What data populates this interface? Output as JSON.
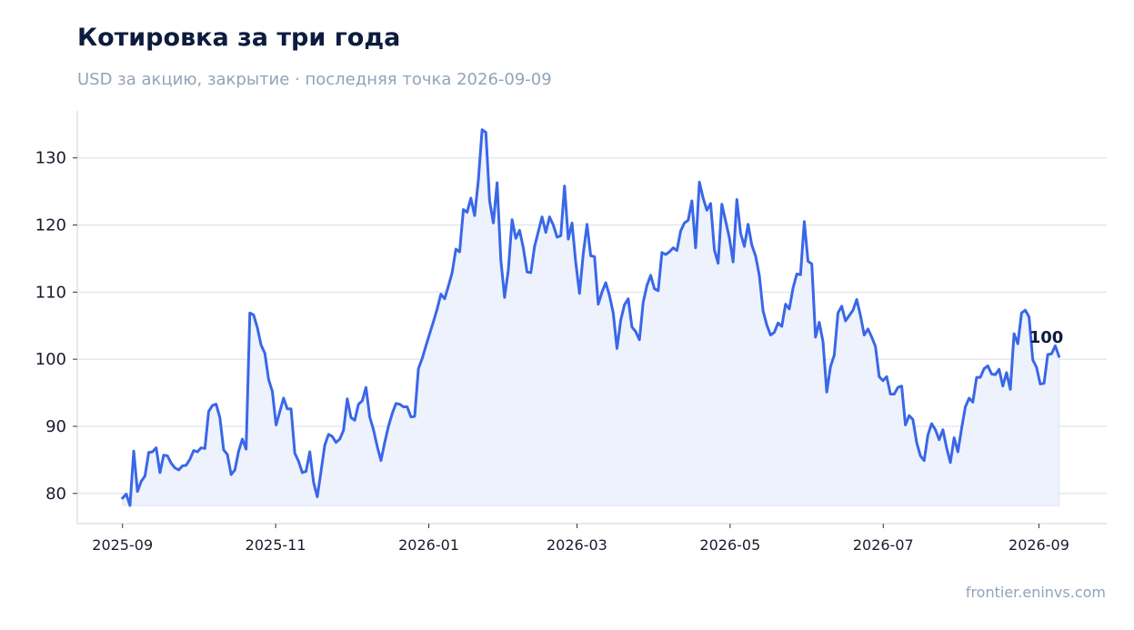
{
  "title": "Котировка за три года",
  "subtitle": "USD за акцию, закрытие · последняя точка 2026-09-09",
  "credit": "frontier.eninvs.com",
  "colors": {
    "line": "#3a67e8",
    "fill": "#edf2fd",
    "grid": "#dde2f0",
    "axis": "#dde2ea"
  },
  "chart_data": {
    "type": "area",
    "x_start": "2025-09-01",
    "x_end": "2026-09-09",
    "xlim": [
      "2025-08-14",
      "2026-09-28"
    ],
    "ylim": [
      75.5,
      137
    ],
    "yticks": [
      80,
      90,
      100,
      110,
      120,
      130
    ],
    "xticks": [
      "2025-09",
      "2025-11",
      "2026-01",
      "2026-03",
      "2026-05",
      "2026-07",
      "2026-09"
    ],
    "grid": true,
    "last_label": "100",
    "series": [
      {
        "values": [
          79.3,
          79.9,
          78.2,
          86.3,
          80.3,
          81.8,
          82.6,
          86.1,
          86.2,
          86.8,
          83.1,
          85.7,
          85.6,
          84.5,
          83.8,
          83.5,
          84.1,
          84.2,
          85.1,
          86.4,
          86.2,
          86.8,
          86.7,
          92.2,
          93.1,
          93.3,
          91.3,
          86.5,
          85.8,
          82.8,
          83.5,
          86.3,
          88.1,
          86.6,
          106.9,
          106.6,
          104.7,
          102.1,
          100.9,
          97.0,
          95.2,
          90.2,
          92.2,
          94.2,
          92.6,
          92.6,
          86.0,
          84.8,
          83.1,
          83.3,
          86.2,
          81.7,
          79.5,
          83.3,
          87.2,
          88.8,
          88.5,
          87.6,
          88.1,
          89.4,
          94.1,
          91.3,
          90.9,
          93.3,
          93.8,
          95.8,
          91.4,
          89.5,
          87.0,
          84.9,
          87.6,
          90.0,
          91.9,
          93.4,
          93.3,
          92.9,
          92.9,
          91.4,
          91.5,
          98.6,
          100.1,
          102.0,
          103.8,
          105.6,
          107.5,
          109.7,
          109.0,
          110.9,
          112.9,
          116.4,
          116.0,
          122.3,
          121.9,
          124.0,
          121.4,
          126.7,
          134.2,
          133.8,
          123.6,
          120.3,
          126.3,
          114.8,
          109.2,
          113.3,
          120.8,
          118.0,
          119.2,
          116.6,
          113.0,
          112.9,
          116.8,
          119.0,
          121.2,
          118.9,
          121.2,
          120.0,
          118.2,
          118.4,
          125.8,
          117.9,
          120.3,
          114.4,
          109.8,
          115.7,
          120.1,
          115.4,
          115.3,
          108.2,
          110.0,
          111.4,
          109.5,
          106.9,
          101.6,
          105.8,
          108.1,
          109.0,
          104.8,
          104.1,
          102.9,
          108.5,
          111.0,
          112.5,
          110.5,
          110.2,
          115.9,
          115.6,
          116.0,
          116.6,
          116.2,
          119.1,
          120.3,
          120.7,
          123.6,
          116.6,
          126.4,
          124.0,
          122.2,
          123.2,
          116.3,
          114.3,
          123.1,
          120.6,
          118.1,
          114.5,
          123.8,
          118.8,
          116.8,
          120.1,
          117.0,
          115.4,
          112.5,
          107.2,
          105.1,
          103.6,
          104.0,
          105.4,
          104.9,
          108.2,
          107.5,
          110.6,
          112.7,
          112.6,
          120.5,
          114.6,
          114.2,
          103.3,
          105.5,
          102.6,
          95.1,
          98.9,
          100.6,
          106.9,
          107.9,
          105.7,
          106.5,
          107.3,
          108.9,
          106.5,
          103.6,
          104.5,
          103.3,
          101.9,
          97.4,
          96.8,
          97.4,
          94.8,
          94.8,
          95.8,
          96.0,
          90.2,
          91.6,
          91.0,
          87.6,
          85.6,
          84.9,
          88.7,
          90.4,
          89.5,
          88.0,
          89.5,
          86.8,
          84.6,
          88.3,
          86.2,
          89.7,
          92.9,
          94.2,
          93.6,
          97.3,
          97.3,
          98.6,
          99.0,
          97.8,
          97.7,
          98.5,
          96.0,
          98.0,
          95.5,
          103.8,
          102.3,
          106.9,
          107.3,
          106.3,
          99.9,
          98.8,
          96.3,
          96.4,
          100.7,
          100.8,
          102.0,
          100.4
        ]
      }
    ]
  }
}
